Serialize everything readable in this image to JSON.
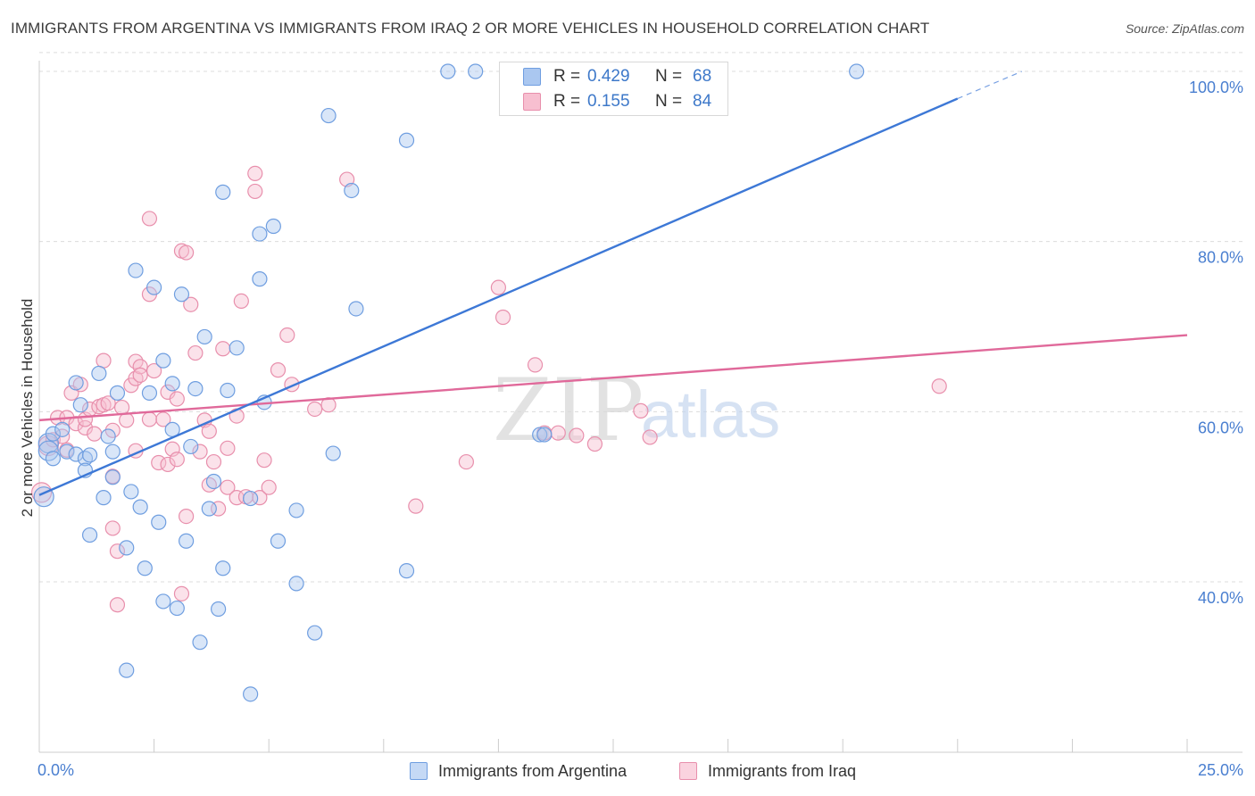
{
  "title": "IMMIGRANTS FROM ARGENTINA VS IMMIGRANTS FROM IRAQ 2 OR MORE VEHICLES IN HOUSEHOLD CORRELATION CHART",
  "source": "Source: ZipAtlas.com",
  "watermark": {
    "zip": "ZIP",
    "atlas": "atlas"
  },
  "legend": {
    "r_label": "R =",
    "n_label": "N =",
    "rows": [
      {
        "r": "0.429",
        "n": "68",
        "color": "#aac7f0",
        "border": "#6f9ee0"
      },
      {
        "r": "0.155",
        "n": "84",
        "color": "#f7bfd0",
        "border": "#e88fac"
      }
    ]
  },
  "bottom_legend": [
    {
      "label": "Immigrants from Argentina",
      "color": "#c5d9f5",
      "border": "#6f9ee0"
    },
    {
      "label": "Immigrants from Iraq",
      "color": "#fad3df",
      "border": "#e88fac"
    }
  ],
  "colors": {
    "blue": "#3d78d6",
    "pink": "#e0699a",
    "grid": "#dcdcdc",
    "tick_text": "#4a7fd0"
  },
  "chart_data": {
    "type": "scatter",
    "title": "IMMIGRANTS FROM ARGENTINA VS IMMIGRANTS FROM IRAQ 2 OR MORE VEHICLES IN HOUSEHOLD CORRELATION CHART",
    "xlabel": "",
    "ylabel": "2 or more Vehicles in Household",
    "xlim": [
      0,
      25
    ],
    "ylim": [
      20,
      102
    ],
    "x_tick_labels": [
      "0.0%",
      "25.0%"
    ],
    "y_ticks": [
      40,
      60,
      80,
      100
    ],
    "y_tick_labels": [
      "40.0%",
      "60.0%",
      "80.0%",
      "100.0%"
    ],
    "grid": true,
    "legend_position": "top-center",
    "series": [
      {
        "name": "Immigrants from Argentina",
        "color": "#6f9ee0",
        "fill": "#aac7f0",
        "r": 0.429,
        "n": 68,
        "trend": {
          "x": [
            0,
            20
          ],
          "y": [
            50.2,
            96.8
          ]
        },
        "trend_dashed": {
          "x": [
            20,
            21.4
          ],
          "y": [
            96.8,
            100
          ]
        },
        "points": [
          [
            0.1,
            50.0
          ],
          [
            0.2,
            56.3
          ],
          [
            0.2,
            55.4
          ],
          [
            0.3,
            54.5
          ],
          [
            0.3,
            57.4
          ],
          [
            0.5,
            57.9
          ],
          [
            0.6,
            55.3
          ],
          [
            0.8,
            55.0
          ],
          [
            0.8,
            63.4
          ],
          [
            0.9,
            60.8
          ],
          [
            1.0,
            54.5
          ],
          [
            1.0,
            53.1
          ],
          [
            1.1,
            54.9
          ],
          [
            1.1,
            45.5
          ],
          [
            1.3,
            64.5
          ],
          [
            1.4,
            49.9
          ],
          [
            1.5,
            57.1
          ],
          [
            1.6,
            55.3
          ],
          [
            1.6,
            52.3
          ],
          [
            1.7,
            62.2
          ],
          [
            1.9,
            44.0
          ],
          [
            1.9,
            29.6
          ],
          [
            2.0,
            50.6
          ],
          [
            2.1,
            76.6
          ],
          [
            2.2,
            48.8
          ],
          [
            2.3,
            41.6
          ],
          [
            2.4,
            62.2
          ],
          [
            2.5,
            74.6
          ],
          [
            2.6,
            47.0
          ],
          [
            2.7,
            66.0
          ],
          [
            2.7,
            37.7
          ],
          [
            2.9,
            63.3
          ],
          [
            2.9,
            57.9
          ],
          [
            3.0,
            36.9
          ],
          [
            3.1,
            73.8
          ],
          [
            3.2,
            44.8
          ],
          [
            3.3,
            55.9
          ],
          [
            3.4,
            62.7
          ],
          [
            3.5,
            32.9
          ],
          [
            3.6,
            68.8
          ],
          [
            3.7,
            48.6
          ],
          [
            3.8,
            51.8
          ],
          [
            3.9,
            36.8
          ],
          [
            4.0,
            85.8
          ],
          [
            4.0,
            41.6
          ],
          [
            4.1,
            62.5
          ],
          [
            4.3,
            67.5
          ],
          [
            4.6,
            49.8
          ],
          [
            4.6,
            26.8
          ],
          [
            4.8,
            80.9
          ],
          [
            4.8,
            75.6
          ],
          [
            4.9,
            61.1
          ],
          [
            5.1,
            81.8
          ],
          [
            5.2,
            44.8
          ],
          [
            5.6,
            48.4
          ],
          [
            5.6,
            39.8
          ],
          [
            6.0,
            34.0
          ],
          [
            6.3,
            94.8
          ],
          [
            6.4,
            55.1
          ],
          [
            6.8,
            86.0
          ],
          [
            6.9,
            72.1
          ],
          [
            8.0,
            91.9
          ],
          [
            8.0,
            41.3
          ],
          [
            8.9,
            100.0
          ],
          [
            9.5,
            100.0
          ],
          [
            10.9,
            57.3
          ],
          [
            11.0,
            57.3
          ],
          [
            17.8,
            100.0
          ]
        ]
      },
      {
        "name": "Immigrants from Iraq",
        "color": "#e88fac",
        "fill": "#f7bfd0",
        "r": 0.155,
        "n": 84,
        "trend": {
          "x": [
            0,
            25
          ],
          "y": [
            59.0,
            69.0
          ]
        },
        "points": [
          [
            0.05,
            50.5
          ],
          [
            0.2,
            56.0
          ],
          [
            0.3,
            56.7
          ],
          [
            0.4,
            59.3
          ],
          [
            0.5,
            57.1
          ],
          [
            0.6,
            59.3
          ],
          [
            0.6,
            55.5
          ],
          [
            0.7,
            62.2
          ],
          [
            0.8,
            58.6
          ],
          [
            0.9,
            63.2
          ],
          [
            1.0,
            58.1
          ],
          [
            1.0,
            59.1
          ],
          [
            1.1,
            60.3
          ],
          [
            1.2,
            57.4
          ],
          [
            1.3,
            60.6
          ],
          [
            1.4,
            60.8
          ],
          [
            1.4,
            66.0
          ],
          [
            1.5,
            61.0
          ],
          [
            1.6,
            46.3
          ],
          [
            1.6,
            57.8
          ],
          [
            1.6,
            52.4
          ],
          [
            1.7,
            37.3
          ],
          [
            1.7,
            43.6
          ],
          [
            1.8,
            60.5
          ],
          [
            1.9,
            59.0
          ],
          [
            2.0,
            63.1
          ],
          [
            2.1,
            55.4
          ],
          [
            2.1,
            65.9
          ],
          [
            2.1,
            63.9
          ],
          [
            2.2,
            65.3
          ],
          [
            2.2,
            64.3
          ],
          [
            2.4,
            59.1
          ],
          [
            2.4,
            73.8
          ],
          [
            2.4,
            82.7
          ],
          [
            2.5,
            64.8
          ],
          [
            2.6,
            54.0
          ],
          [
            2.7,
            59.1
          ],
          [
            2.8,
            53.8
          ],
          [
            2.8,
            62.3
          ],
          [
            2.9,
            55.6
          ],
          [
            3.0,
            54.4
          ],
          [
            3.0,
            61.5
          ],
          [
            3.1,
            38.6
          ],
          [
            3.1,
            78.9
          ],
          [
            3.2,
            78.7
          ],
          [
            3.2,
            47.7
          ],
          [
            3.3,
            72.6
          ],
          [
            3.4,
            66.9
          ],
          [
            3.5,
            55.3
          ],
          [
            3.6,
            59.0
          ],
          [
            3.7,
            57.7
          ],
          [
            3.7,
            51.4
          ],
          [
            3.8,
            54.1
          ],
          [
            3.9,
            48.6
          ],
          [
            4.0,
            67.4
          ],
          [
            4.1,
            51.1
          ],
          [
            4.1,
            55.7
          ],
          [
            4.3,
            59.5
          ],
          [
            4.3,
            49.9
          ],
          [
            4.4,
            73.0
          ],
          [
            4.5,
            50.0
          ],
          [
            4.7,
            88.0
          ],
          [
            4.7,
            85.9
          ],
          [
            4.8,
            49.9
          ],
          [
            4.9,
            54.3
          ],
          [
            5.0,
            51.1
          ],
          [
            5.2,
            64.9
          ],
          [
            5.4,
            69.0
          ],
          [
            5.5,
            63.2
          ],
          [
            6.0,
            60.3
          ],
          [
            6.3,
            60.8
          ],
          [
            6.7,
            87.3
          ],
          [
            9.3,
            54.1
          ],
          [
            10.0,
            74.6
          ],
          [
            10.1,
            71.1
          ],
          [
            10.8,
            65.5
          ],
          [
            11.0,
            57.5
          ],
          [
            11.3,
            57.5
          ],
          [
            11.7,
            57.2
          ],
          [
            12.1,
            56.2
          ],
          [
            13.1,
            60.1
          ],
          [
            13.3,
            57.0
          ],
          [
            19.6,
            63.0
          ],
          [
            8.2,
            48.9
          ]
        ]
      }
    ]
  }
}
